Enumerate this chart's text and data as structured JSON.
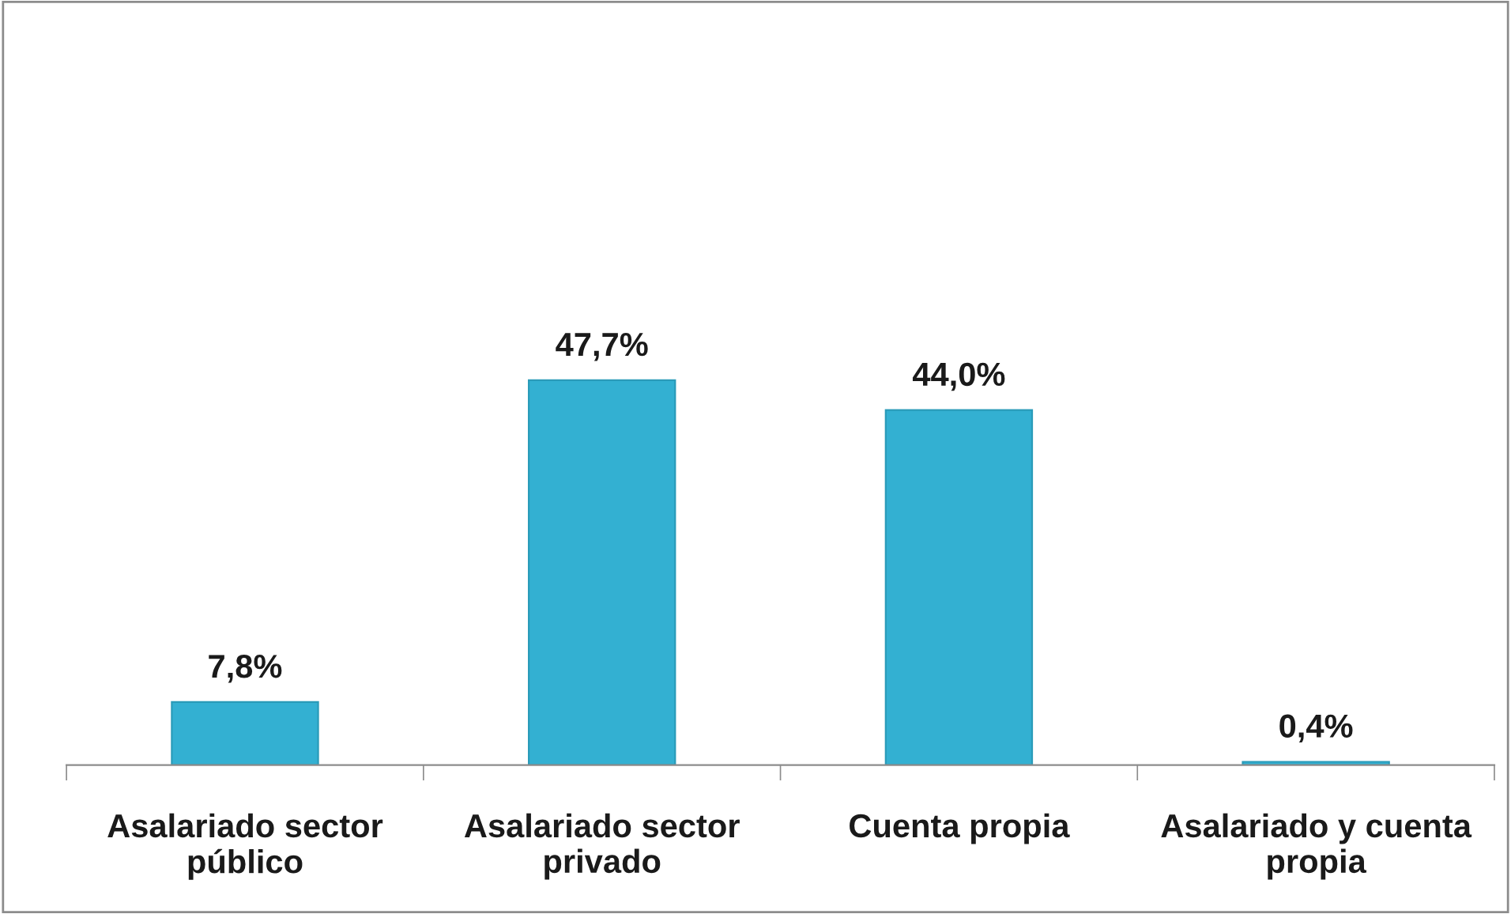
{
  "chart_data": {
    "type": "bar",
    "categories": [
      "Asalariado sector público",
      "Asalariado sector privado",
      "Cuenta propia",
      "Asalariado y cuenta propia"
    ],
    "values": [
      7.8,
      47.7,
      44.0,
      0.4
    ],
    "value_labels": [
      "7,8%",
      "47,7%",
      "44,0%",
      "0,4%"
    ],
    "color": "#33b0d2",
    "grid": false,
    "legend": false
  }
}
